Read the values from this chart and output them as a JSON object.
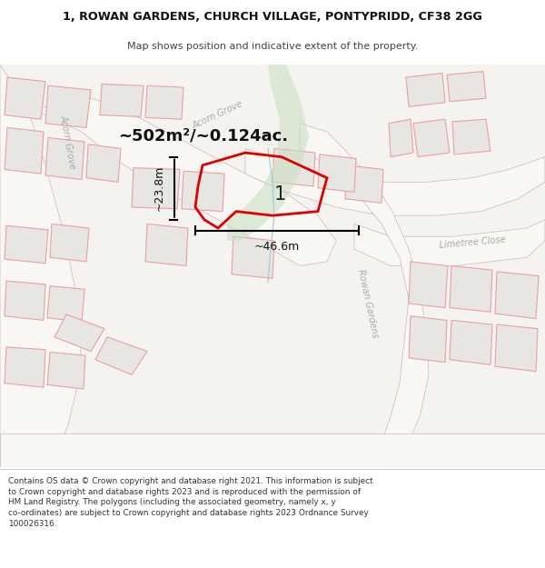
{
  "title_line1": "1, ROWAN GARDENS, CHURCH VILLAGE, PONTYPRIDD, CF38 2GG",
  "title_line2": "Map shows position and indicative extent of the property.",
  "area_text": "~502m²/~0.124ac.",
  "dim_width": "~46.6m",
  "dim_height": "~23.8m",
  "label_number": "1",
  "footer_text": "Contains OS data © Crown copyright and database right 2021. This information is subject\nto Crown copyright and database rights 2023 and is reproduced with the permission of\nHM Land Registry. The polygons (including the associated geometry, namely x, y\nco-ordinates) are subject to Crown copyright and database rights 2023 Ordnance Survey\n100026316.",
  "map_bg": "#f5f3f0",
  "road_fill": "#ffffff",
  "block_fill": "#e8e6e2",
  "block_edge": "#e8a0a0",
  "road_edge": "#d4b0b0",
  "plot_fill": "none",
  "plot_stroke": "#dd0000",
  "green_fill": "#c8dfc0",
  "green_alpha": 0.55,
  "text_dark": "#222222",
  "text_grey": "#999999",
  "footer_bg": "#ffffff"
}
